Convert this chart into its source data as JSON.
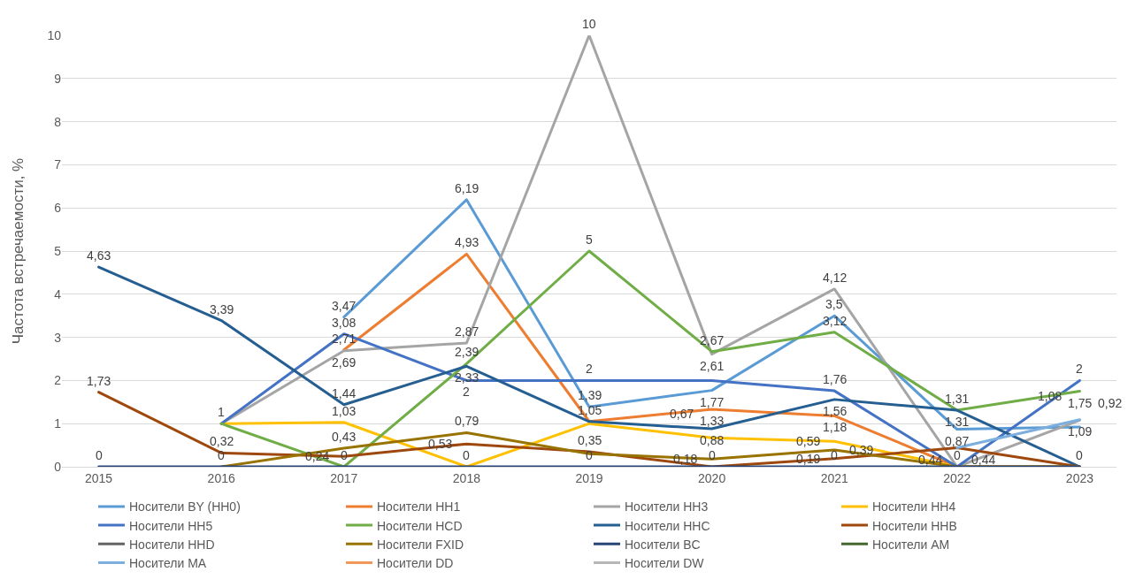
{
  "chart_data": {
    "type": "line",
    "ylabel": "Частота встречаемости, %",
    "categories": [
      "2015",
      "2016",
      "2017",
      "2018",
      "2019",
      "2020",
      "2021",
      "2022",
      "2023"
    ],
    "ylim": [
      0,
      10
    ],
    "yticks": [
      0,
      1,
      2,
      3,
      4,
      5,
      6,
      7,
      8,
      9,
      10
    ],
    "grid": "y",
    "legend": "bottom",
    "marker": "none",
    "line_style": "solid",
    "series": [
      {
        "name": "Носители BY (HH0)",
        "color": "#5b9bd5",
        "values": [
          null,
          null,
          3.47,
          6.19,
          1.39,
          1.77,
          3.5,
          0.87,
          0.92
        ],
        "value_labels": [
          null,
          null,
          "3,47",
          "6,19",
          "1,39",
          "1,77",
          "3,5",
          "0,87",
          "0,92"
        ]
      },
      {
        "name": "Носители HH1",
        "color": "#ed7d31",
        "values": [
          null,
          null,
          2.71,
          4.93,
          1.05,
          1.33,
          1.18,
          0,
          0
        ],
        "value_labels": [
          null,
          null,
          "2,71",
          "4,93",
          null,
          "1,33",
          "1,18",
          null,
          null
        ]
      },
      {
        "name": "Носители HH3",
        "color": "#a5a5a5",
        "values": [
          null,
          1,
          2.69,
          2.87,
          10,
          2.61,
          4.12,
          0,
          1.08
        ],
        "value_labels": [
          null,
          "1",
          "2,69",
          "2,87",
          "10",
          "2,61",
          "4,12",
          null,
          "1,08"
        ]
      },
      {
        "name": "Носители HH4",
        "color": "#ffc000",
        "values": [
          null,
          1,
          1.03,
          0,
          1,
          0.67,
          0.59,
          0,
          0
        ],
        "value_labels": [
          null,
          null,
          "1,03",
          null,
          null,
          "0,67",
          "0,59",
          null,
          null
        ]
      },
      {
        "name": "Носители HH5",
        "color": "#4472c4",
        "values": [
          null,
          1,
          3.08,
          2,
          2,
          2,
          1.76,
          0,
          2
        ],
        "value_labels": [
          null,
          null,
          "3,08",
          "2",
          "2",
          null,
          "1,76",
          null,
          "2"
        ]
      },
      {
        "name": "Носители HCD",
        "color": "#70ad47",
        "values": [
          null,
          1,
          0,
          2.39,
          5,
          2.67,
          3.12,
          1.31,
          1.75
        ],
        "value_labels": [
          null,
          null,
          null,
          "2,39",
          "5",
          "2,67",
          "3,12",
          "1,31",
          "1,75"
        ]
      },
      {
        "name": "Носители HHC",
        "color": "#255e91",
        "values": [
          4.63,
          3.39,
          1.44,
          2.33,
          1.05,
          0.88,
          1.56,
          1.31,
          0
        ],
        "value_labels": [
          "4,63",
          "3,39",
          "1,44",
          "2,33",
          "1,05",
          "0,88",
          "1,56",
          "1,31",
          null
        ]
      },
      {
        "name": "Носители HHB",
        "color": "#9e480e",
        "values": [
          1.73,
          0.32,
          0.24,
          0.53,
          0.35,
          0,
          0.19,
          0.44,
          0
        ],
        "value_labels": [
          "1,73",
          "0,32",
          "0,24",
          "0,53",
          "0,35",
          null,
          "0,19",
          "0,44",
          null
        ]
      },
      {
        "name": "Носители HHD",
        "color": "#636363",
        "values": [
          null,
          null,
          null,
          null,
          null,
          null,
          null,
          null,
          null
        ]
      },
      {
        "name": "Носители FXID",
        "color": "#997300",
        "values": [
          null,
          0,
          0.43,
          0.79,
          0.3,
          0.18,
          0.39,
          0,
          0
        ],
        "value_labels": [
          null,
          null,
          "0,43",
          "0,79",
          null,
          "0,18",
          "0,39",
          null,
          null
        ]
      },
      {
        "name": "Носители BC",
        "color": "#264478",
        "values": [
          0,
          0,
          0,
          0,
          0,
          0,
          0,
          0,
          0
        ],
        "value_labels": [
          "0",
          "0",
          "0",
          "0",
          "0",
          "0",
          "0",
          "0",
          "0"
        ]
      },
      {
        "name": "Носители AM",
        "color": "#43682b",
        "values": [
          null,
          null,
          null,
          null,
          null,
          null,
          null,
          null,
          null
        ]
      },
      {
        "name": "Носители MA",
        "color": "#7cafdd",
        "values": [
          null,
          null,
          null,
          null,
          null,
          null,
          null,
          0.44,
          1.09
        ],
        "value_labels": [
          null,
          null,
          null,
          null,
          null,
          null,
          null,
          "0,44",
          "1,09"
        ]
      },
      {
        "name": "Носители DD",
        "color": "#f1975a",
        "values": [
          null,
          null,
          null,
          null,
          null,
          null,
          null,
          null,
          null
        ]
      },
      {
        "name": "Носители DW",
        "color": "#b7b7b7",
        "values": [
          null,
          null,
          null,
          null,
          null,
          null,
          null,
          null,
          null
        ]
      }
    ]
  }
}
